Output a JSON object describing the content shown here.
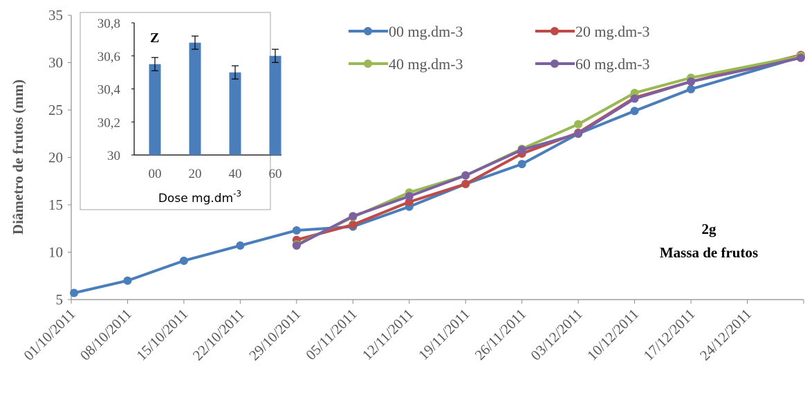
{
  "chart_data": [
    {
      "type": "line",
      "title": "",
      "ylabel": "Diâmetro de frutos (mm)",
      "xlabel": "",
      "ylim": [
        5,
        35
      ],
      "yticks": [
        "5",
        "10",
        "15",
        "20",
        "25",
        "30",
        "35"
      ],
      "categories": [
        "01/10/2011",
        "08/10/2011",
        "15/10/2011",
        "22/10/2011",
        "29/10/2011",
        "05/11/2011",
        "12/11/2011",
        "19/11/2011",
        "26/11/2011",
        "03/12/2011",
        "10/12/2011",
        "17/12/2011",
        "24/12/2011"
      ],
      "annotation": [
        "2g",
        "Massa de frutos"
      ],
      "legend_position": "top-right",
      "series": [
        {
          "name": "00 mg.dm-3",
          "color": "#4a7ebb",
          "points": [
            [
              0.05,
              5.7
            ],
            [
              1,
              7.0
            ],
            [
              2,
              9.1
            ],
            [
              3,
              10.7
            ],
            [
              4,
              12.3
            ],
            [
              5,
              12.7
            ],
            [
              6,
              14.8
            ],
            [
              7,
              17.2
            ],
            [
              8,
              19.3
            ],
            [
              9,
              22.5
            ],
            [
              10,
              24.9
            ],
            [
              11,
              27.2
            ],
            [
              12.95,
              30.6
            ]
          ]
        },
        {
          "name": "20 mg.dm-3",
          "color": "#be4b48",
          "points": [
            [
              4,
              11.3
            ],
            [
              5,
              12.9
            ],
            [
              6,
              15.3
            ],
            [
              7,
              17.2
            ],
            [
              8,
              20.4
            ],
            [
              9,
              22.6
            ],
            [
              10,
              26.3
            ],
            [
              11,
              28.0
            ],
            [
              12.95,
              30.8
            ]
          ]
        },
        {
          "name": "40 mg.dm-3",
          "color": "#98b954",
          "points": [
            [
              4,
              10.8
            ],
            [
              5,
              13.7
            ],
            [
              6,
              16.3
            ],
            [
              7,
              18.1
            ],
            [
              8,
              20.9
            ],
            [
              9,
              23.5
            ],
            [
              10,
              26.8
            ],
            [
              11,
              28.4
            ],
            [
              12.95,
              30.7
            ]
          ]
        },
        {
          "name": "60 mg.dm-3",
          "color": "#7d60a0",
          "points": [
            [
              4,
              10.7
            ],
            [
              5,
              13.8
            ],
            [
              6,
              15.9
            ],
            [
              7,
              18.1
            ],
            [
              8,
              20.8
            ],
            [
              9,
              22.5
            ],
            [
              10,
              26.2
            ],
            [
              11,
              28.0
            ],
            [
              12.95,
              30.5
            ]
          ]
        }
      ]
    },
    {
      "type": "bar",
      "title": "",
      "panel_letter": "Z",
      "categories": [
        "00",
        "20",
        "40",
        "60"
      ],
      "values": [
        30.55,
        30.68,
        30.5,
        30.6
      ],
      "errors": [
        0.04,
        0.04,
        0.04,
        0.04
      ],
      "ylim": [
        30,
        30.8
      ],
      "yticks": [
        "30",
        "30,2",
        "30,4",
        "30,6",
        "30,8"
      ],
      "xlabel": "Dose mg.dm",
      "xlabel_superscript": "-3",
      "color": "#4a7ebb"
    }
  ]
}
